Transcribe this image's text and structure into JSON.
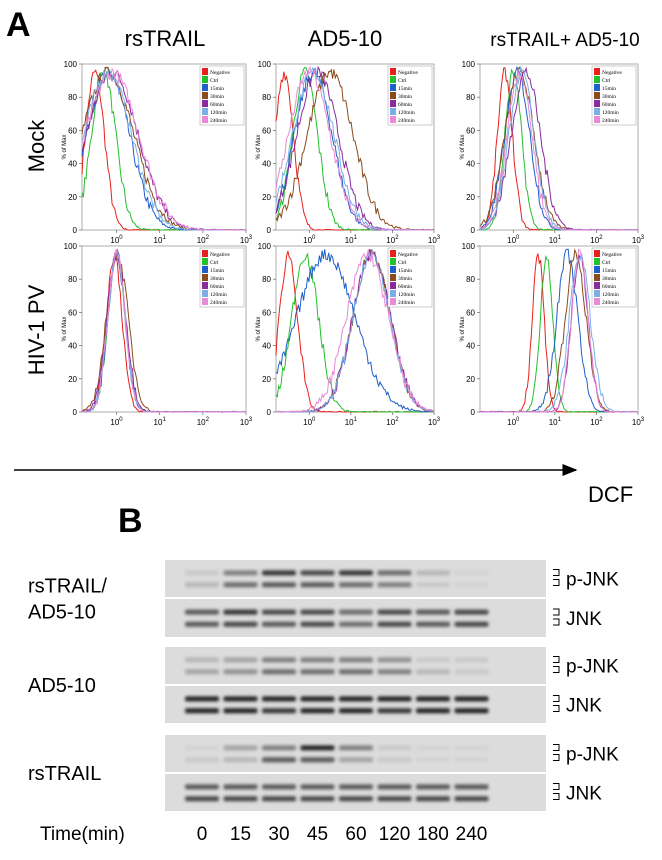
{
  "panel_a": {
    "label": "A",
    "columns": [
      "rsTRAIL",
      "AD5-10",
      "rsTRAIL+ AD5-10"
    ],
    "rows": [
      "Mock",
      "HIV-1 PV"
    ],
    "y_axis_label": "% of Max",
    "y_ticks": [
      "0",
      "20",
      "40",
      "60",
      "80",
      "100"
    ],
    "x_tick_base": "10",
    "x_tick_exponents": [
      "0",
      "1",
      "2",
      "3"
    ],
    "legend": [
      {
        "label": "Negative",
        "color": "#e8201c"
      },
      {
        "label": "Ctrl",
        "color": "#22c02a"
      },
      {
        "label": "15min",
        "color": "#1f5fc8"
      },
      {
        "label": "30min",
        "color": "#8a4a1c"
      },
      {
        "label": "60min",
        "color": "#8a2a9c"
      },
      {
        "label": "120min",
        "color": "#7aaee8"
      },
      {
        "label": "240min",
        "color": "#e88ad8"
      }
    ],
    "x_axis_label": "DCF"
  },
  "panel_b": {
    "label": "B",
    "groups": [
      {
        "label_lines": [
          "rsTRAIL/",
          "AD5-10"
        ],
        "bands": [
          "p-JNK",
          "JNK"
        ]
      },
      {
        "label_lines": [
          "AD5-10"
        ],
        "bands": [
          "p-JNK",
          "JNK"
        ]
      },
      {
        "label_lines": [
          "rsTRAIL"
        ],
        "bands": [
          "p-JNK",
          "JNK"
        ]
      }
    ],
    "time_label": "Time(min)",
    "times": [
      "0",
      "15",
      "30",
      "45",
      "60",
      "120",
      "180",
      "240"
    ]
  }
}
